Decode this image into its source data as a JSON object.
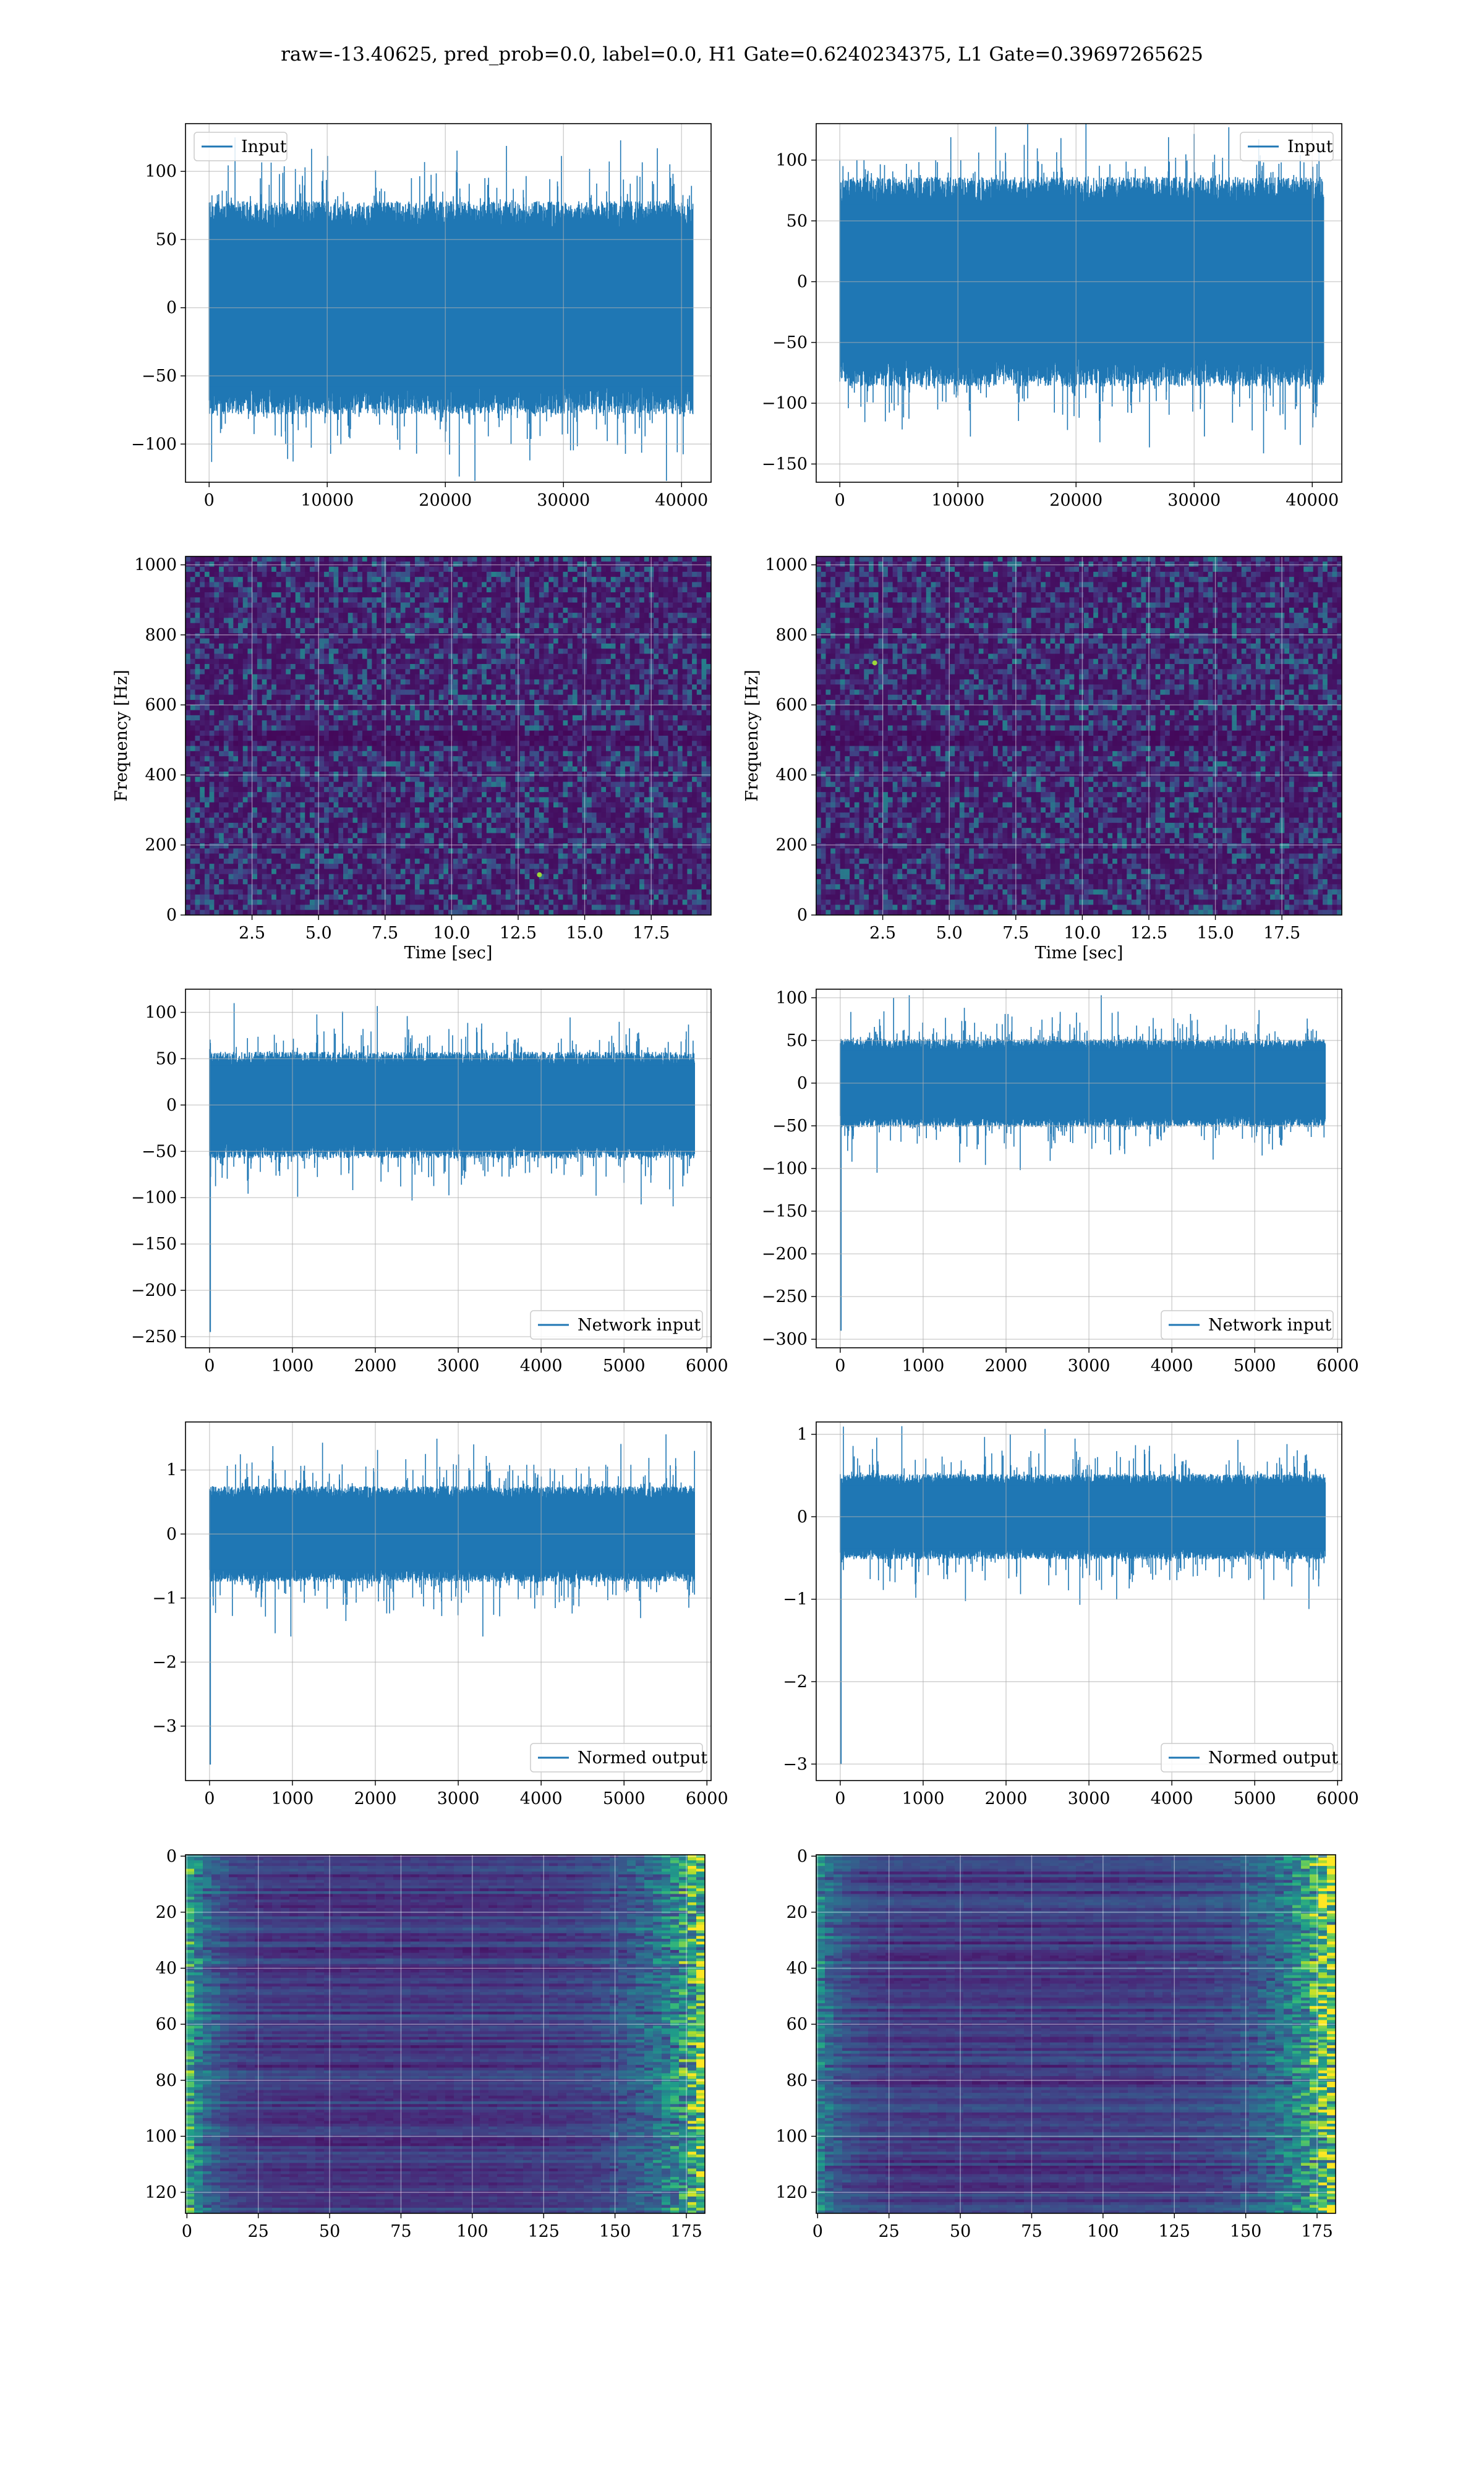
{
  "figure": {
    "title": "raw=-13.40625, pred_prob=0.0, label=0.0, H1 Gate=0.6240234375, L1 Gate=0.39697265625"
  },
  "colors": {
    "line": "#1f77b4",
    "grid": "#b0b0b0",
    "axis": "#000000",
    "viridis_dark": "#440154",
    "viridis_mid": "#21918c",
    "viridis_bright": "#fde725"
  },
  "chart_data": [
    {
      "type": "line",
      "title": "",
      "legend": {
        "label": "Input",
        "loc": "upper-left"
      },
      "xlim": [
        -2000,
        42500
      ],
      "ylim": [
        -128,
        135
      ],
      "xticks": [
        0,
        10000,
        20000,
        30000,
        40000
      ],
      "yticks": [
        -100,
        -50,
        0,
        50,
        100
      ],
      "xlabel": "",
      "ylabel": "",
      "grid": true,
      "series": [
        {
          "band": {
            "x": [
              0,
              40960
            ],
            "core": [
              -68,
              68
            ],
            "spike_max": 130,
            "spike_min": -127
          }
        }
      ]
    },
    {
      "type": "line",
      "title": "",
      "legend": {
        "label": "Input",
        "loc": "upper-right"
      },
      "xlim": [
        -2000,
        42500
      ],
      "ylim": [
        -165,
        130
      ],
      "xticks": [
        0,
        10000,
        20000,
        30000,
        40000
      ],
      "yticks": [
        -150,
        -100,
        -50,
        0,
        50,
        100
      ],
      "xlabel": "",
      "ylabel": "",
      "grid": true,
      "series": [
        {
          "band": {
            "x": [
              0,
              40960
            ],
            "core": [
              -75,
              75
            ],
            "spike_max": 130,
            "spike_min": -150
          }
        }
      ]
    },
    {
      "type": "heatmap",
      "title": "",
      "xlabel": "Time [sec]",
      "ylabel": "Frequency [Hz]",
      "xlim": [
        0,
        19.75
      ],
      "ylim": [
        0,
        1024
      ],
      "xticks": [
        2.5,
        5.0,
        7.5,
        10.0,
        12.5,
        15.0,
        17.5
      ],
      "xtick_labels": [
        "2.5",
        "5.0",
        "7.5",
        "10.0",
        "12.5",
        "15.0",
        "17.5"
      ],
      "yticks": [
        0,
        200,
        400,
        600,
        800,
        1000
      ],
      "grid": true,
      "colormap": "viridis",
      "hot_spots": [
        {
          "t": 13.3,
          "f": 115
        }
      ]
    },
    {
      "type": "heatmap",
      "title": "",
      "xlabel": "Time [sec]",
      "ylabel": "Frequency [Hz]",
      "xlim": [
        0,
        19.75
      ],
      "ylim": [
        0,
        1024
      ],
      "xticks": [
        2.5,
        5.0,
        7.5,
        10.0,
        12.5,
        15.0,
        17.5
      ],
      "xtick_labels": [
        "2.5",
        "5.0",
        "7.5",
        "10.0",
        "12.5",
        "15.0",
        "17.5"
      ],
      "yticks": [
        0,
        200,
        400,
        600,
        800,
        1000
      ],
      "grid": true,
      "colormap": "viridis",
      "hot_spots": [
        {
          "t": 2.2,
          "f": 720
        }
      ]
    },
    {
      "type": "line",
      "title": "",
      "legend": {
        "label": "Network input",
        "loc": "lower-right"
      },
      "xlim": [
        -290,
        6050
      ],
      "ylim": [
        -262,
        125
      ],
      "xticks": [
        0,
        1000,
        2000,
        3000,
        4000,
        5000,
        6000
      ],
      "yticks": [
        -250,
        -200,
        -150,
        -100,
        -50,
        0,
        50,
        100
      ],
      "xlabel": "",
      "ylabel": "",
      "grid": true,
      "series": [
        {
          "band": {
            "x": [
              0,
              5850
            ],
            "core": [
              -50,
              50
            ],
            "spike_max": 110,
            "spike_min": -110
          },
          "initial_dip": -245
        }
      ]
    },
    {
      "type": "line",
      "title": "",
      "legend": {
        "label": "Network input",
        "loc": "lower-right"
      },
      "xlim": [
        -290,
        6050
      ],
      "ylim": [
        -310,
        110
      ],
      "xticks": [
        0,
        1000,
        2000,
        3000,
        4000,
        5000,
        6000
      ],
      "yticks": [
        -300,
        -250,
        -200,
        -150,
        -100,
        -50,
        0,
        50,
        100
      ],
      "xlabel": "",
      "ylabel": "",
      "grid": true,
      "series": [
        {
          "band": {
            "x": [
              0,
              5850
            ],
            "core": [
              -45,
              45
            ],
            "spike_max": 103,
            "spike_min": -105
          },
          "initial_dip": -290
        }
      ]
    },
    {
      "type": "line",
      "title": "",
      "legend": {
        "label": "Normed output",
        "loc": "lower-right"
      },
      "xlim": [
        -290,
        6050
      ],
      "ylim": [
        -3.85,
        1.75
      ],
      "xticks": [
        0,
        1000,
        2000,
        3000,
        4000,
        5000,
        6000
      ],
      "yticks": [
        -3,
        -2,
        -1,
        0,
        1
      ],
      "xlabel": "",
      "ylabel": "",
      "grid": true,
      "series": [
        {
          "band": {
            "x": [
              0,
              5850
            ],
            "core": [
              -0.65,
              0.65
            ],
            "spike_max": 1.6,
            "spike_min": -1.6
          },
          "initial_dip": -3.6
        }
      ]
    },
    {
      "type": "line",
      "title": "",
      "legend": {
        "label": "Normed output",
        "loc": "lower-right"
      },
      "xlim": [
        -290,
        6050
      ],
      "ylim": [
        -3.2,
        1.15
      ],
      "xticks": [
        0,
        1000,
        2000,
        3000,
        4000,
        5000,
        6000
      ],
      "yticks": [
        -3,
        -2,
        -1,
        0,
        1
      ],
      "xlabel": "",
      "ylabel": "",
      "grid": true,
      "series": [
        {
          "band": {
            "x": [
              0,
              5850
            ],
            "core": [
              -0.45,
              0.45
            ],
            "spike_max": 1.1,
            "spike_min": -1.15
          },
          "initial_dip": -3.0
        }
      ]
    },
    {
      "type": "heatmap",
      "title": "",
      "xlabel": "",
      "ylabel": "",
      "xlim": [
        -0.5,
        181.5
      ],
      "ylim": [
        127.5,
        -0.5
      ],
      "xticks": [
        0,
        25,
        50,
        75,
        100,
        125,
        150,
        175
      ],
      "yticks": [
        0,
        20,
        40,
        60,
        80,
        100,
        120
      ],
      "grid": true,
      "colormap": "viridis",
      "rows": 128,
      "cols": 182,
      "bright_edges": {
        "left": 0.55,
        "right": 0.85
      }
    },
    {
      "type": "heatmap",
      "title": "",
      "xlabel": "",
      "ylabel": "",
      "xlim": [
        -0.5,
        181.5
      ],
      "ylim": [
        127.5,
        -0.5
      ],
      "xticks": [
        0,
        25,
        50,
        75,
        100,
        125,
        150,
        175
      ],
      "yticks": [
        0,
        20,
        40,
        60,
        80,
        100,
        120
      ],
      "grid": true,
      "colormap": "viridis",
      "rows": 128,
      "cols": 182,
      "bright_edges": {
        "left": 0.35,
        "right": 0.95
      }
    }
  ]
}
